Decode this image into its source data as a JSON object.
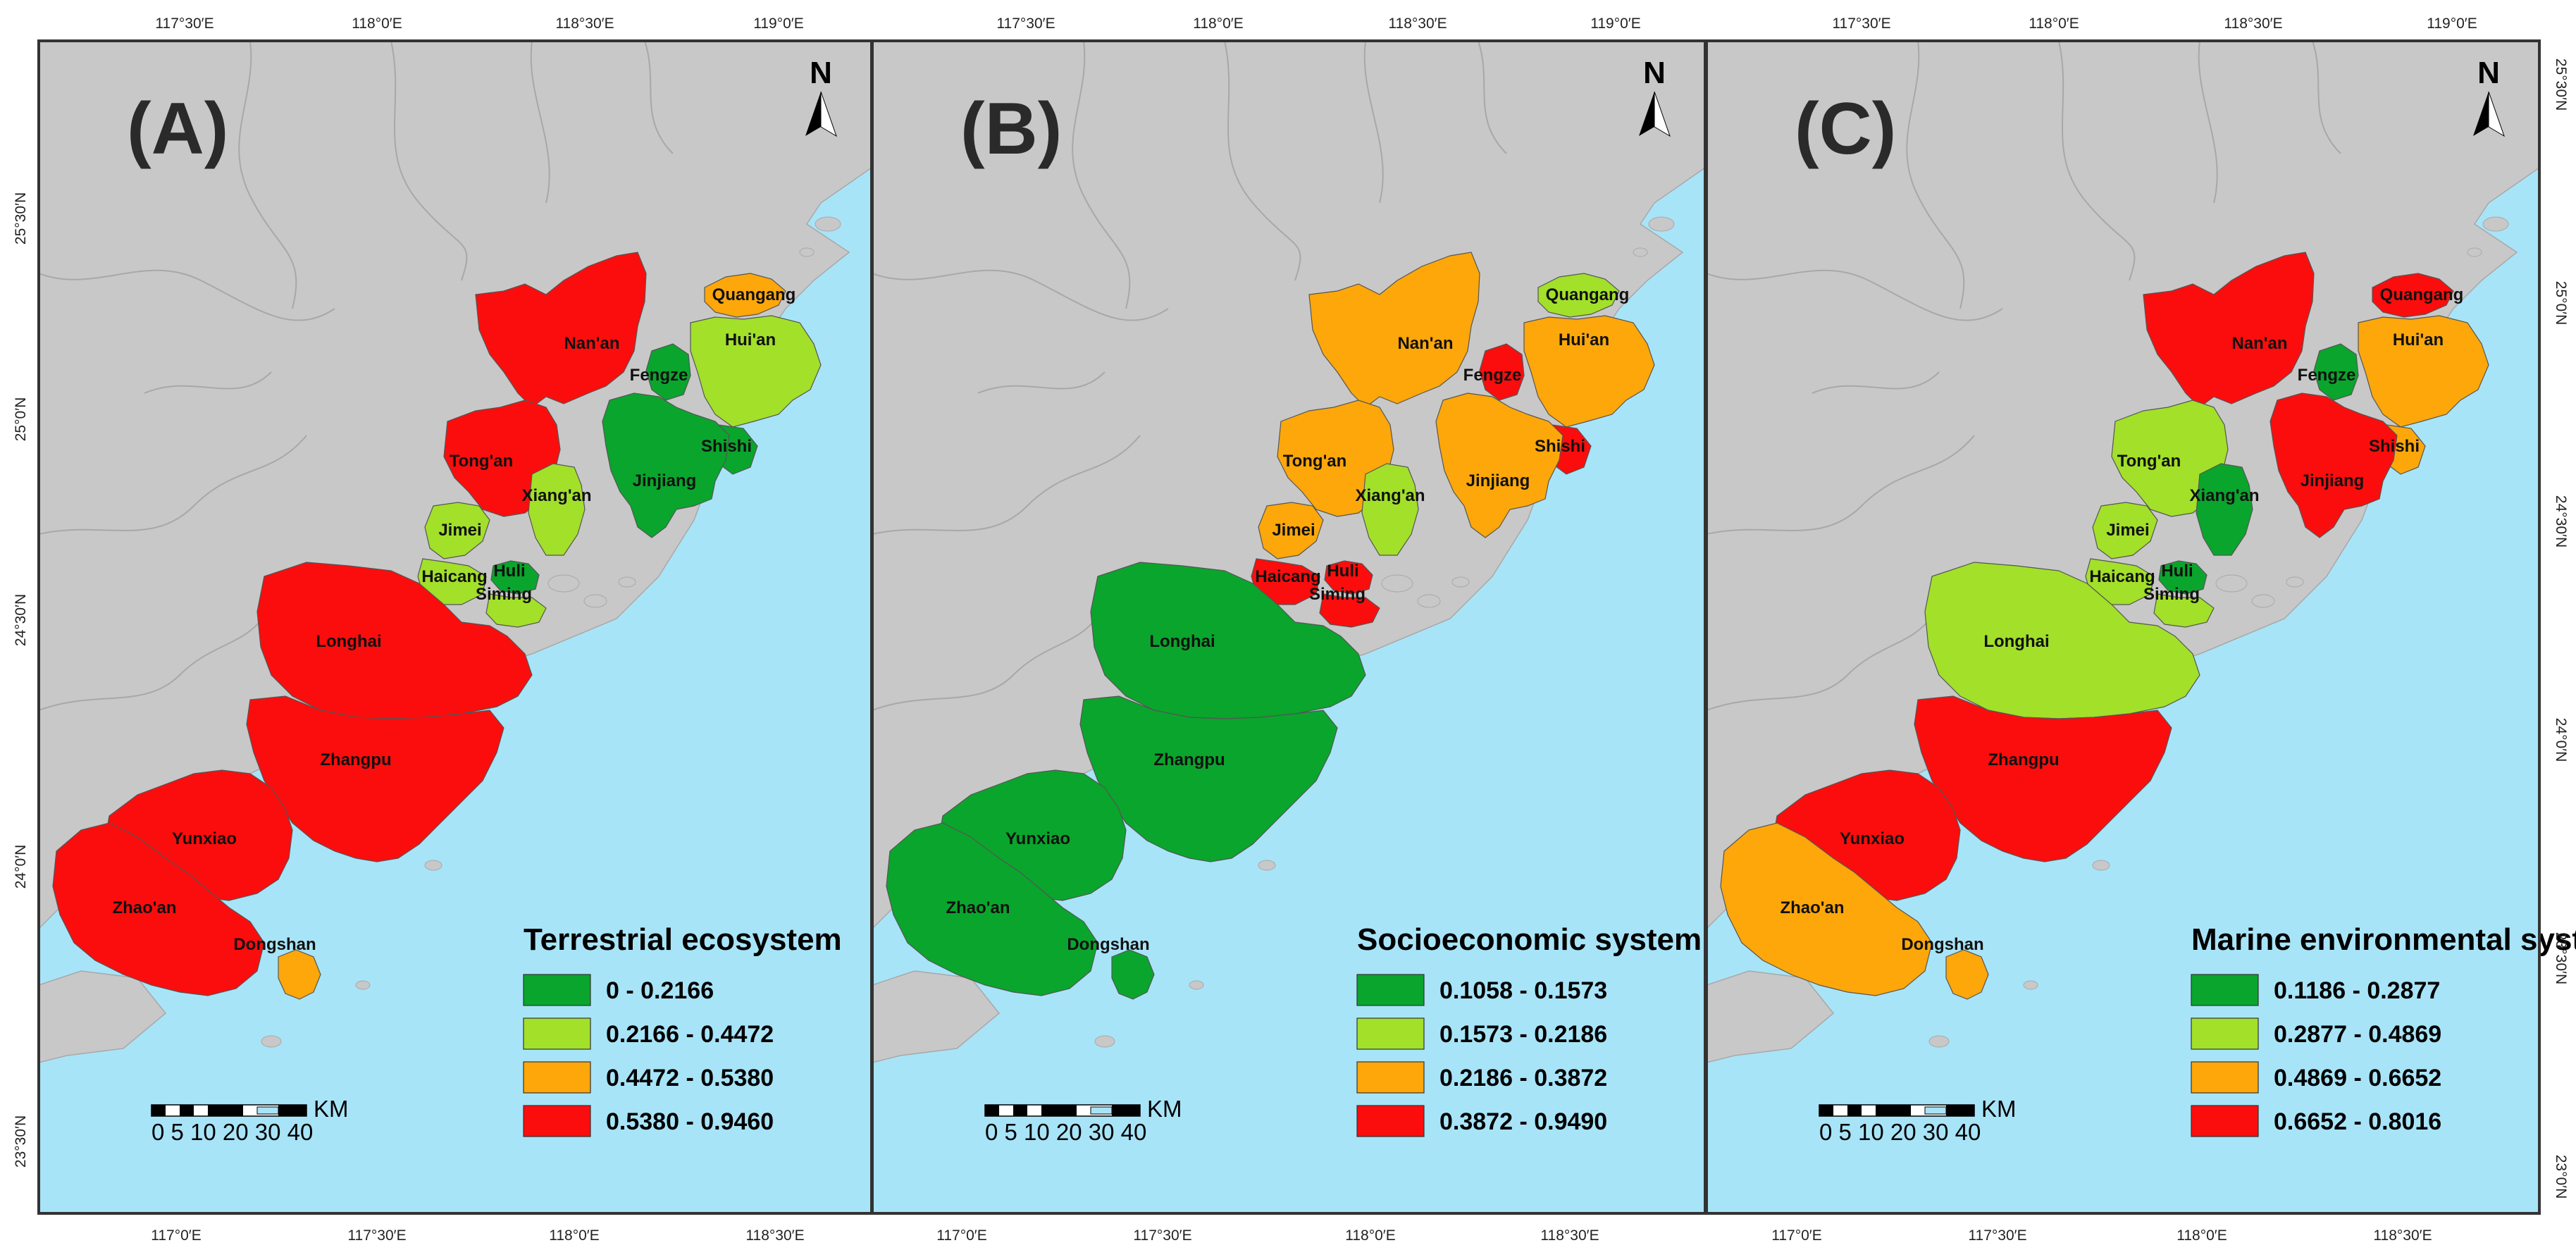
{
  "colors": {
    "sea": "#a8e4f8",
    "land": "#c8c8c8",
    "land_border": "#a8a8a8",
    "class1": "#0aa52c",
    "class2": "#a2e02a",
    "class3": "#fda70a",
    "class4": "#fb0d0d",
    "frame": "#333333"
  },
  "ticks": {
    "top": [
      "117°30′E",
      "118°0′E",
      "118°30′E",
      "119°0′E"
    ],
    "bottom": [
      "117°0′E",
      "117°30′E",
      "118°0′E",
      "118°30′E"
    ],
    "left": [
      "25°30′N",
      "25°0′N",
      "24°30′N",
      "24°0′N",
      "23°30′N"
    ],
    "right": [
      "25°30′N",
      "25°0′N",
      "24°30′N",
      "24°0′N",
      "23°30′N",
      "23°0′N"
    ]
  },
  "north_label": "N",
  "scale_bar": {
    "numbers": "0 5 10   20   30   40",
    "unit": "KM"
  },
  "regions": [
    "Quangang",
    "Hui'an",
    "Nan'an",
    "Fengze",
    "Shishi",
    "Tong'an",
    "Xiang'an",
    "Jinjiang",
    "Jimei",
    "Haicang",
    "Huli",
    "Siming",
    "Longhai",
    "Zhangpu",
    "Yunxiao",
    "Zhao'an",
    "Dongshan"
  ],
  "panels": [
    {
      "letter": "(A)",
      "legend_title": "Terrestrial ecosystem",
      "legend": [
        "0 - 0.2166",
        "0.2166 - 0.4472",
        "0.4472 - 0.5380",
        "0.5380 - 0.9460"
      ],
      "classes": {
        "Quangang": 3,
        "Hui'an": 2,
        "Nan'an": 4,
        "Fengze": 1,
        "Shishi": 1,
        "Tong'an": 4,
        "Xiang'an": 2,
        "Jinjiang": 1,
        "Jimei": 2,
        "Haicang": 2,
        "Huli": 1,
        "Siming": 2,
        "Longhai": 4,
        "Zhangpu": 4,
        "Yunxiao": 4,
        "Zhao'an": 4,
        "Dongshan": 3
      }
    },
    {
      "letter": "(B)",
      "legend_title": "Socioeconomic system",
      "legend": [
        "0.1058 - 0.1573",
        "0.1573 - 0.2186",
        "0.2186 - 0.3872",
        "0.3872 - 0.9490"
      ],
      "classes": {
        "Quangang": 2,
        "Hui'an": 3,
        "Nan'an": 3,
        "Fengze": 4,
        "Shishi": 4,
        "Tong'an": 3,
        "Xiang'an": 2,
        "Jinjiang": 3,
        "Jimei": 3,
        "Haicang": 4,
        "Huli": 4,
        "Siming": 4,
        "Longhai": 1,
        "Zhangpu": 1,
        "Yunxiao": 1,
        "Zhao'an": 1,
        "Dongshan": 1
      }
    },
    {
      "letter": "(C)",
      "legend_title": "Marine environmental system",
      "legend": [
        "0.1186 - 0.2877",
        "0.2877 - 0.4869",
        "0.4869 - 0.6652",
        "0.6652 - 0.8016"
      ],
      "classes": {
        "Quangang": 4,
        "Hui'an": 3,
        "Nan'an": 4,
        "Fengze": 1,
        "Shishi": 3,
        "Tong'an": 2,
        "Xiang'an": 1,
        "Jinjiang": 4,
        "Jimei": 2,
        "Haicang": 2,
        "Huli": 1,
        "Siming": 2,
        "Longhai": 2,
        "Zhangpu": 4,
        "Yunxiao": 4,
        "Zhao'an": 3,
        "Dongshan": 3
      }
    }
  ]
}
